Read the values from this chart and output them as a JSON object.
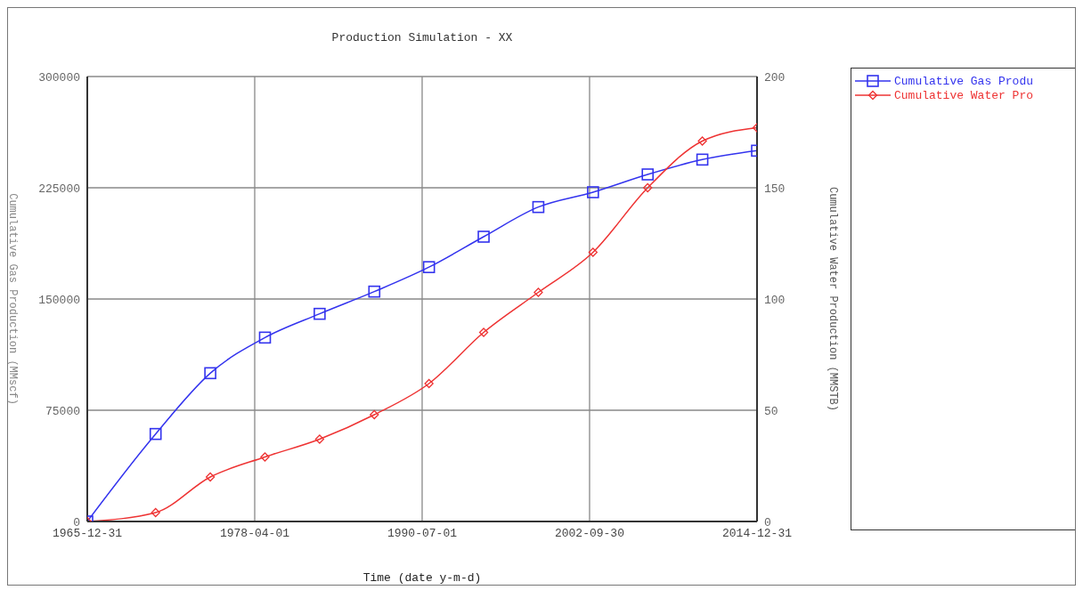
{
  "chart_data": {
    "type": "line",
    "title": "Production Simulation - XX",
    "xlabel": "Time (date y-m-d)",
    "ylabel": "Cumulative Gas Production (MMscf)",
    "y2label": "Cumulative Water Production (MMSTB)",
    "x": [
      "1965-12-31",
      "1970-12-31",
      "1974-12-31",
      "1978-12-31",
      "1982-12-31",
      "1986-12-31",
      "1990-12-31",
      "1994-12-31",
      "1998-12-31",
      "2002-12-31",
      "2006-12-31",
      "2010-12-31",
      "2014-12-31"
    ],
    "series": [
      {
        "name": "Cumulative Gas Produ",
        "color": "#3333ee",
        "marker": "square",
        "values": [
          0,
          59000,
          100000,
          124000,
          140000,
          155000,
          171500,
          192000,
          212000,
          222000,
          234000,
          244000,
          250000
        ]
      },
      {
        "name": "Cumulative Water Pro",
        "color": "#ee3333",
        "marker": "diamond",
        "axis": "y2",
        "values": [
          0,
          4,
          20,
          29,
          37,
          48,
          62,
          85,
          103,
          121,
          150,
          171,
          177
        ]
      }
    ],
    "xlim": [
      "1965-12-31",
      "2014-12-31"
    ],
    "xticks": [
      "1965-12-31",
      "1978-04-01",
      "1990-07-01",
      "2002-09-30",
      "2014-12-31"
    ],
    "ylim": [
      0,
      300000
    ],
    "yticks": [
      0,
      75000,
      150000,
      225000,
      300000
    ],
    "y2lim": [
      0,
      200
    ],
    "y2ticks": [
      0,
      50,
      100,
      150,
      200
    ],
    "grid": true,
    "legend": "right",
    "line_style": "solid"
  }
}
